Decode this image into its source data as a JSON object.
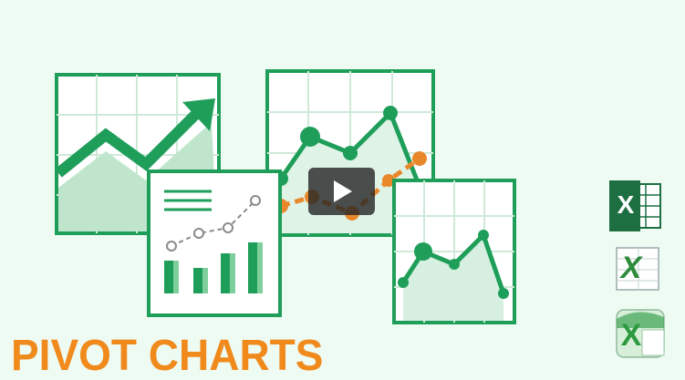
{
  "title": "PIVOT CHARTS",
  "colors": {
    "background": "#eefbf3",
    "accent_green": "#1f9e5a",
    "light_green": "#bfe6cc",
    "orange": "#e8882a",
    "title_orange": "#f08a1c",
    "play_button": "#282828"
  },
  "icons": {
    "play": "play-icon",
    "excel_icons": [
      "excel-icon-flat",
      "excel-icon-classic",
      "excel-icon-old"
    ]
  },
  "excel_letter": "X"
}
